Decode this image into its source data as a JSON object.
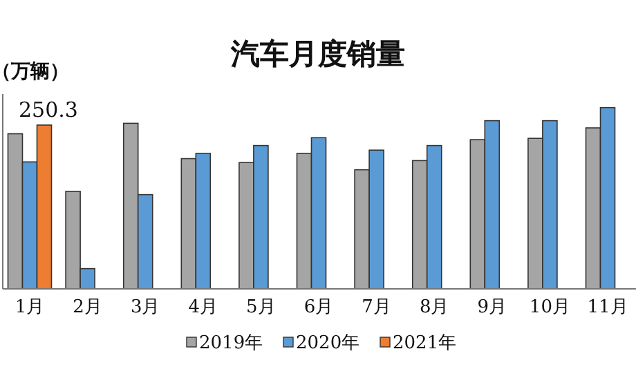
{
  "chart_data": {
    "type": "bar",
    "title": "汽车月度销量",
    "ylabel": "（万辆）",
    "categories": [
      "1月",
      "2月",
      "3月",
      "4月",
      "5月",
      "6月",
      "7月",
      "8月",
      "9月",
      "10月",
      "11月"
    ],
    "series": [
      {
        "name": "2019年",
        "color": "#a5a5a5",
        "values": [
          237,
          149,
          253,
          199,
          193,
          207,
          182,
          196,
          228,
          230,
          246
        ]
      },
      {
        "name": "2020年",
        "color": "#5b9bd5",
        "values": [
          194,
          31,
          144,
          207,
          219,
          231,
          212,
          219,
          257,
          257,
          277
        ]
      },
      {
        "name": "2021年",
        "color": "#ed7d31",
        "values": [
          250.3,
          null,
          null,
          null,
          null,
          null,
          null,
          null,
          null,
          null,
          null
        ],
        "value_labels": [
          "250.3",
          null,
          null,
          null,
          null,
          null,
          null,
          null,
          null,
          null,
          null
        ]
      }
    ],
    "legend": "bottom"
  }
}
